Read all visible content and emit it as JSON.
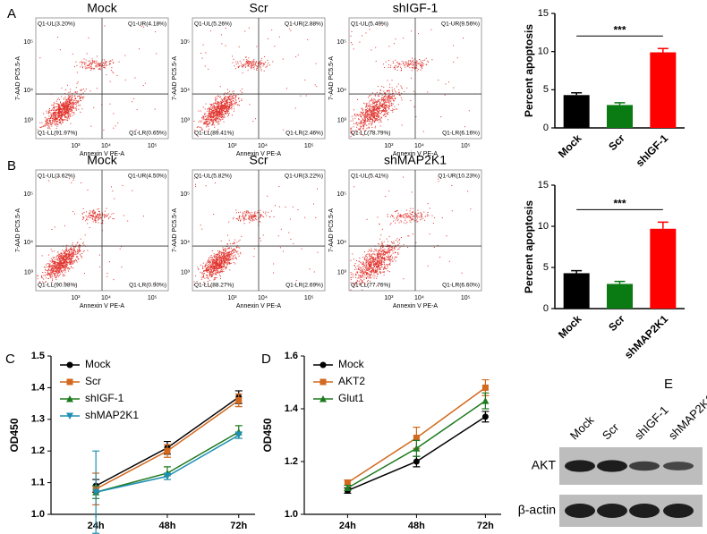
{
  "panels": [
    "A",
    "B",
    "C",
    "D",
    "E"
  ],
  "flow_axes": {
    "x_label": "Annexin V PE-A",
    "y_label": "7-AAD PC5.5-A",
    "x_ticks": [
      "10³",
      "10⁴",
      "10⁵"
    ],
    "y_ticks": [
      "10³",
      "10⁴",
      "10⁵"
    ]
  },
  "flow_plots": [
    {
      "title": "Mock",
      "quadrants": {
        "UL": "Q1-UL(3.20%)",
        "UR": "Q1-UR(4.18%)",
        "LL": "Q1-LL(91.97%)",
        "LR": "Q1-LR(0.65%)"
      }
    },
    {
      "title": "Scr",
      "quadrants": {
        "UL": "Q1-UL(5.26%)",
        "UR": "Q1-UR(2.88%)",
        "LL": "Q1-LL(89.41%)",
        "LR": "Q1-LR(2.46%)"
      }
    },
    {
      "title": "shIGF-1",
      "quadrants": {
        "UL": "Q1-UL(5.49%)",
        "UR": "Q1-UR(9.56%)",
        "LL": "Q1-LL(78.79%)",
        "LR": "Q1-LR(6.16%)"
      }
    },
    {
      "title": "Mock",
      "quadrants": {
        "UL": "Q1-UL(3.62%)",
        "UR": "Q1-UR(4.50%)",
        "LL": "Q1-LL(90.98%)",
        "LR": "Q1-LR(0.90%)"
      }
    },
    {
      "title": "Scr",
      "quadrants": {
        "UL": "Q1-UL(5.82%)",
        "UR": "Q1-UR(3.22%)",
        "LL": "Q1-LL(88.27%)",
        "LR": "Q1-LR(2.69%)"
      }
    },
    {
      "title": "shMAP2K1",
      "quadrants": {
        "UL": "Q1-UL(5.41%)",
        "UR": "Q1-UR(10.23%)",
        "LL": "Q1-LL(77.76%)",
        "LR": "Q1-LR(6.60%)"
      }
    }
  ],
  "chart_data": [
    {
      "type": "bar",
      "y_label": "Percent apoptosis",
      "categories": [
        "Mock",
        "Scr",
        "shIGF-1"
      ],
      "values": [
        4.3,
        3.0,
        9.9
      ],
      "errors": [
        0.3,
        0.3,
        0.5
      ],
      "colors": [
        "#000000",
        "#0a7a12",
        "#ff0000"
      ],
      "ylim": [
        0,
        15
      ],
      "yticks": [
        0,
        5,
        10,
        15
      ],
      "annotation": "***"
    },
    {
      "type": "bar",
      "y_label": "Percent apoptosis",
      "categories": [
        "Mock",
        "Scr",
        "shMAP2K1"
      ],
      "values": [
        4.3,
        3.0,
        9.7
      ],
      "errors": [
        0.3,
        0.3,
        0.8
      ],
      "colors": [
        "#000000",
        "#0a7a12",
        "#ff0000"
      ],
      "ylim": [
        0,
        15
      ],
      "yticks": [
        0,
        5,
        10,
        15
      ],
      "annotation": "***"
    },
    {
      "type": "line",
      "y_label": "OD450",
      "categories": [
        "24h",
        "48h",
        "72h"
      ],
      "ylim": [
        1.0,
        1.5
      ],
      "yticks": [
        {
          "value": 1.0,
          "label": "1.0"
        },
        1.1,
        1.2,
        1.3,
        1.4,
        1.5
      ],
      "legend": "upper left",
      "series": [
        {
          "name": "Mock",
          "color": "#000000",
          "marker": "circle",
          "values": [
            1.09,
            1.21,
            1.37
          ],
          "errors": [
            0.02,
            0.02,
            0.02
          ]
        },
        {
          "name": "Scr",
          "color": "#d2691e",
          "marker": "square",
          "values": [
            1.08,
            1.2,
            1.36
          ],
          "errors": [
            0.05,
            0.02,
            0.02
          ]
        },
        {
          "name": "shIGF-1",
          "color": "#1e7a1e",
          "marker": "triangle",
          "values": [
            1.07,
            1.13,
            1.26
          ],
          "errors": [
            0.02,
            0.02,
            0.02
          ]
        },
        {
          "name": "shMAP2K1",
          "color": "#1f8fb4",
          "marker": "triangle-down",
          "values": [
            1.07,
            1.12,
            1.25
          ],
          "errors": [
            0.13,
            0.01,
            0.01
          ]
        }
      ]
    },
    {
      "type": "line",
      "y_label": "OD450",
      "categories": [
        "24h",
        "48h",
        "72h"
      ],
      "ylim": [
        1.0,
        1.6
      ],
      "yticks": [
        {
          "value": 1.0,
          "label": "1.0"
        },
        1.2,
        1.4,
        1.6
      ],
      "legend": "upper left",
      "series": [
        {
          "name": "Mock",
          "color": "#000000",
          "marker": "circle",
          "values": [
            1.09,
            1.2,
            1.37
          ],
          "errors": [
            0.01,
            0.02,
            0.02
          ]
        },
        {
          "name": "AKT2",
          "color": "#d2691e",
          "marker": "square",
          "values": [
            1.12,
            1.29,
            1.48
          ],
          "errors": [
            0.01,
            0.04,
            0.03
          ]
        },
        {
          "name": "Glut1",
          "color": "#1e7a1e",
          "marker": "triangle",
          "values": [
            1.1,
            1.25,
            1.43
          ],
          "errors": [
            0.01,
            0.03,
            0.03
          ]
        }
      ]
    }
  ],
  "blot": {
    "lanes": [
      "Mock",
      "Scr",
      "shIGF-1",
      "shMAP2K1"
    ],
    "rows": [
      "AKT",
      "β-actin"
    ]
  }
}
